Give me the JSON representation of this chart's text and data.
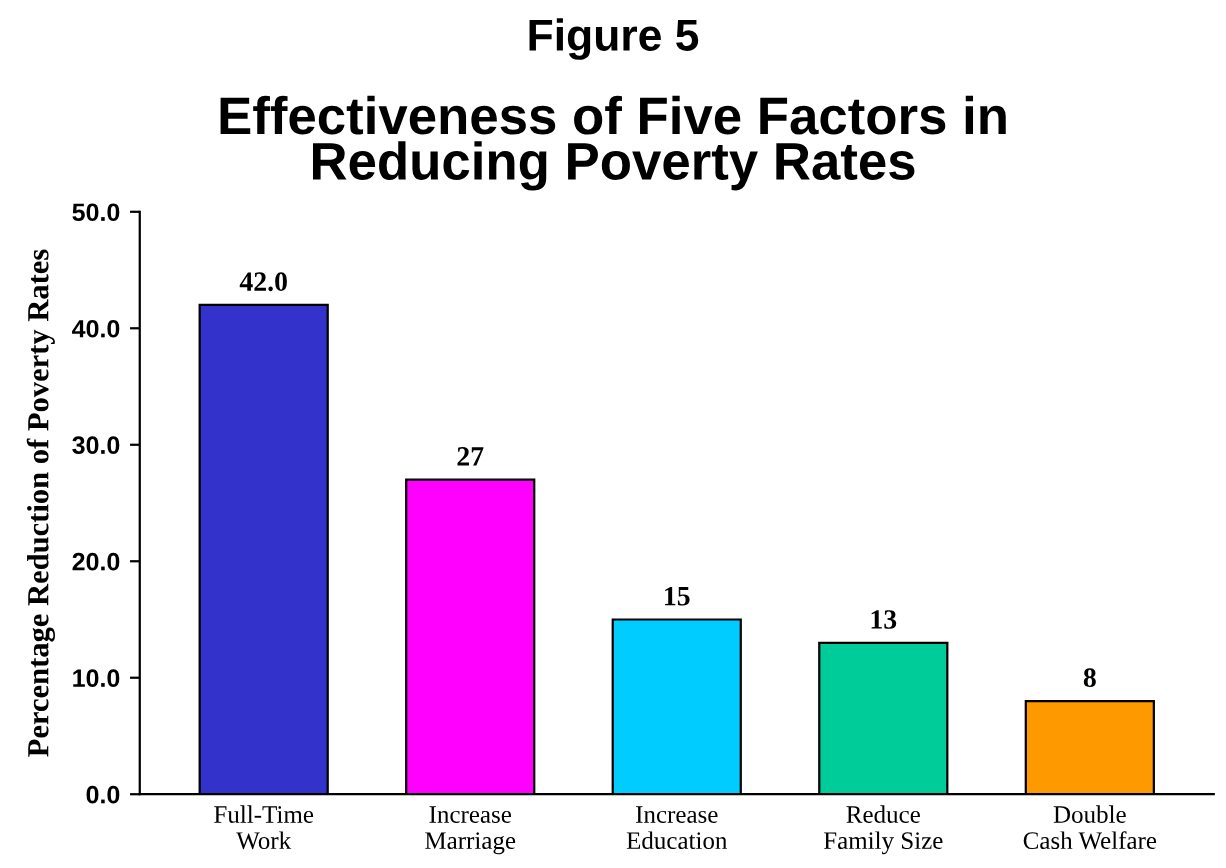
{
  "chart_data": {
    "type": "bar",
    "title": "Figure 5",
    "subtitle": "Effectiveness of Five Factors in\nReducing Poverty Rates",
    "ylabel": "Percentage Reduction of Poverty Rates",
    "categories": [
      "Full-Time\nWork",
      "Increase\nMarriage",
      "Increase\nEducation",
      "Reduce\nFamily Size",
      "Double\nCash Welfare"
    ],
    "values": [
      42.0,
      27,
      15,
      13,
      8
    ],
    "colors": [
      "#3333cc",
      "#ff00ff",
      "#00ccff",
      "#00cc99",
      "#ff9900"
    ],
    "value_labels": [
      "42.0",
      "27",
      "15",
      "13",
      "8"
    ],
    "ylim": [
      0,
      50
    ],
    "yticks": [
      {
        "value": 0,
        "label": "0.0"
      },
      {
        "value": 10,
        "label": "10.0"
      },
      {
        "value": 20,
        "label": "20.0"
      },
      {
        "value": 30,
        "label": "30.0"
      },
      {
        "value": 40,
        "label": "40.0"
      },
      {
        "value": 50,
        "label": "50.0"
      }
    ],
    "grid": false,
    "legend": false
  }
}
